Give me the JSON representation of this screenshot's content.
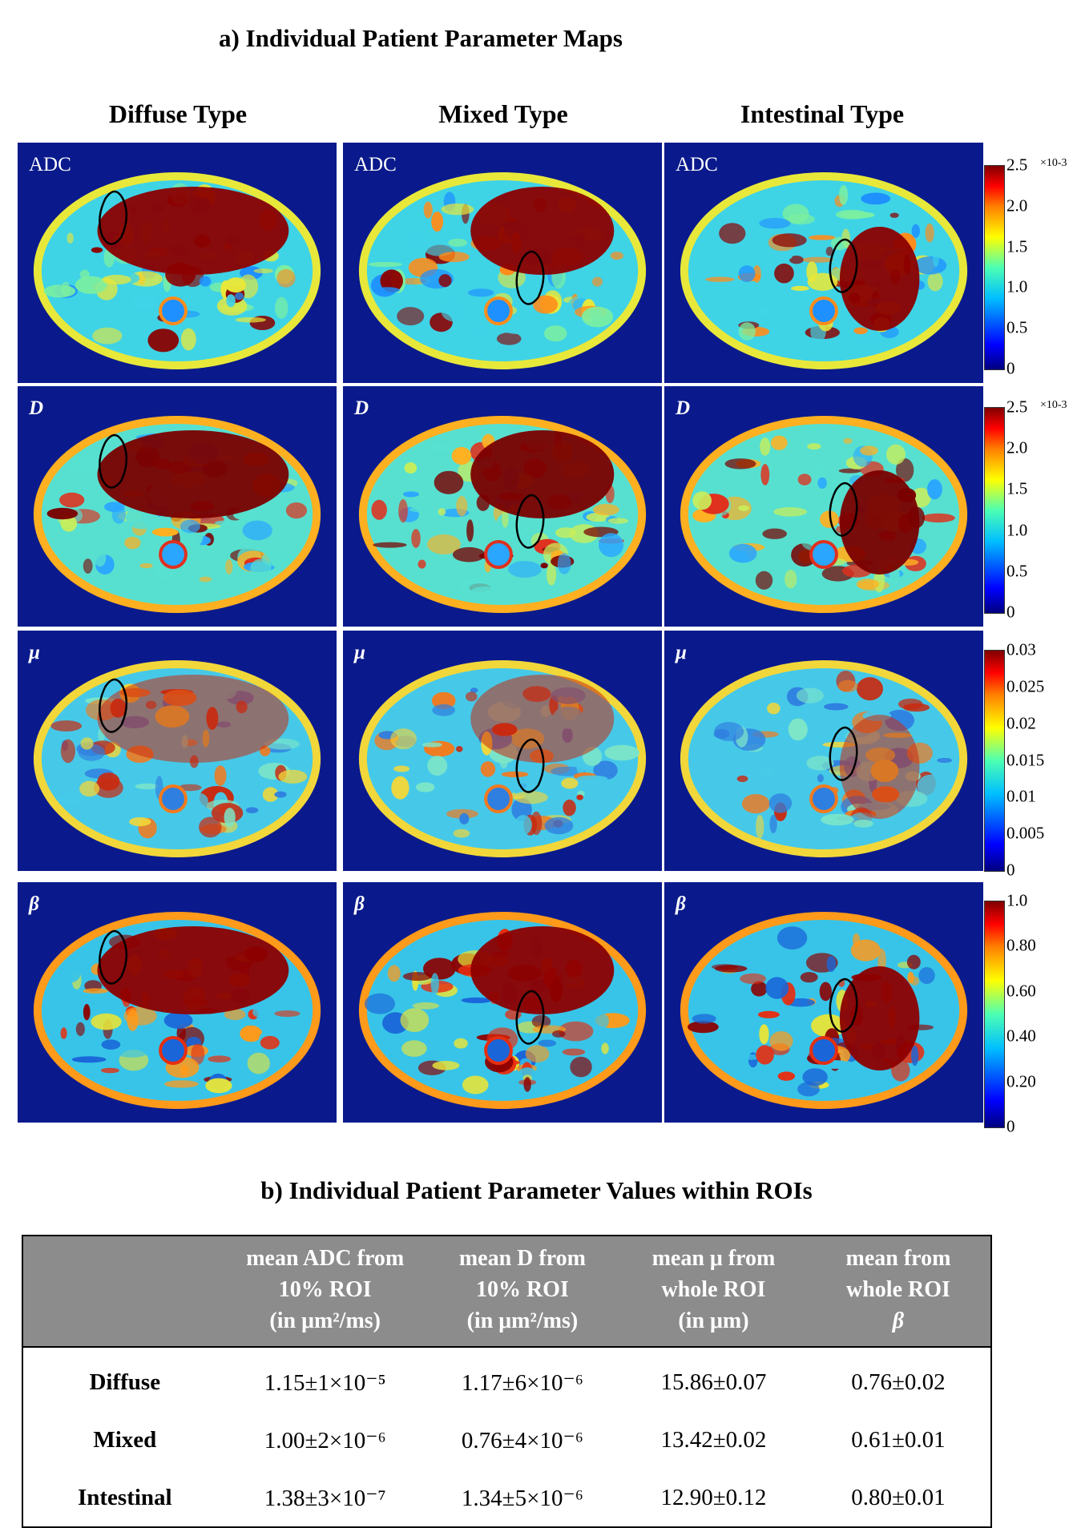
{
  "section_a_title": "a) Individual Patient Parameter Maps",
  "columns": [
    "Diffuse Type",
    "Mixed Type",
    "Intestinal Type"
  ],
  "rows": [
    {
      "label": "ADC",
      "italic": false,
      "colorbar": {
        "ticks": [
          "2.5",
          "2.0",
          "1.5",
          "1.0",
          "0.5",
          "0"
        ],
        "exponent": "×10-3"
      }
    },
    {
      "label": "D",
      "italic": true,
      "colorbar": {
        "ticks": [
          "2.5",
          "2.0",
          "1.5",
          "1.0",
          "0.5",
          "0"
        ],
        "exponent": "×10-3"
      }
    },
    {
      "label": "μ",
      "italic": true,
      "colorbar": {
        "ticks": [
          "0.03",
          "0.025",
          "0.02",
          "0.015",
          "0.01",
          "0.005",
          "0"
        ],
        "exponent": ""
      }
    },
    {
      "label": "β",
      "italic": true,
      "colorbar": {
        "ticks": [
          "1.0",
          "0.80",
          "0.60",
          "0.40",
          "0.20",
          "0"
        ],
        "exponent": ""
      }
    }
  ],
  "section_b_title": "b) Individual Patient Parameter Values within ROIs",
  "table": {
    "headers": [
      [
        ""
      ],
      [
        "mean ADC from",
        "10% ROI",
        "(in μm²/ms)"
      ],
      [
        "mean D from",
        "10% ROI",
        "(in μm²/ms)"
      ],
      [
        "mean μ from",
        "whole ROI",
        "(in μm)"
      ],
      [
        "mean  from",
        "whole ROI",
        "β"
      ]
    ],
    "rows": [
      [
        "Diffuse",
        "1.15±1×10⁻⁵",
        "1.17±6×10⁻⁶",
        "15.86±0.07",
        "0.76±0.02"
      ],
      [
        "Mixed",
        "1.00±2×10⁻⁶",
        "0.76±4×10⁻⁶",
        "13.42±0.02",
        "0.61±0.01"
      ],
      [
        "Intestinal",
        "1.38±3×10⁻⁷",
        "1.34±5×10⁻⁶",
        "12.90±0.12",
        "0.80±0.01"
      ]
    ]
  },
  "colors": {
    "background_map": "#0a1a8c",
    "table_header": "#8c8c8c"
  }
}
